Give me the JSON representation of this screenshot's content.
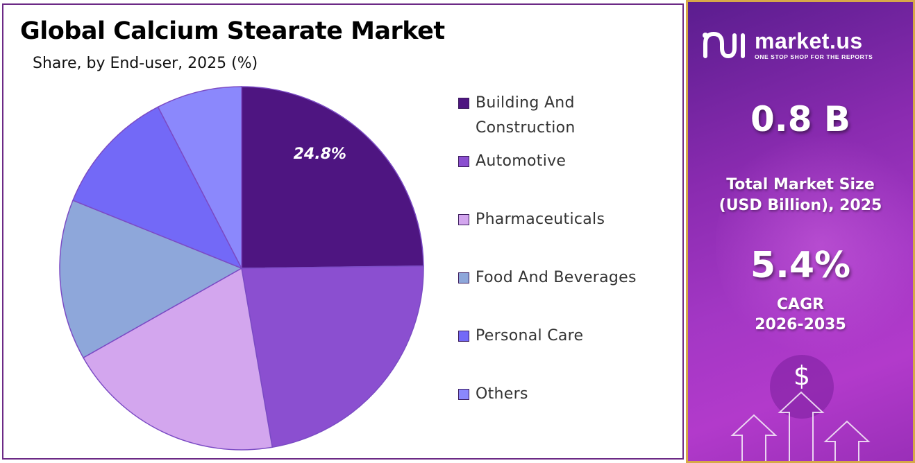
{
  "title": "Global Calcium Stearate Market",
  "subtitle": "Share, by End-user, 2025 (%)",
  "chart_data": {
    "type": "pie",
    "title": "Global Calcium Stearate Market",
    "subtitle": "Share, by End-user, 2025 (%)",
    "legend_position": "right",
    "series": [
      {
        "name": "Building And Construction",
        "value": 24.8,
        "color": "#4e1581",
        "label": "24.8%"
      },
      {
        "name": "Automotive",
        "value": 22.5,
        "color": "#8b4fd0",
        "label": ""
      },
      {
        "name": "Pharmaceuticals",
        "value": 19.5,
        "color": "#d3a6ee",
        "label": ""
      },
      {
        "name": "Food And Beverages",
        "value": 14.3,
        "color": "#8ea7da",
        "label": ""
      },
      {
        "name": "Personal Care",
        "value": 11.3,
        "color": "#7369f7",
        "label": ""
      },
      {
        "name": "Others",
        "value": 7.6,
        "color": "#8b88fc",
        "label": ""
      }
    ]
  },
  "legend": {
    "items": [
      {
        "lines": [
          "Building And",
          "Construction"
        ],
        "color": "#4e1581"
      },
      {
        "lines": [
          "Automotive"
        ],
        "color": "#8b4fd0"
      },
      {
        "lines": [
          "Pharmaceuticals"
        ],
        "color": "#d3a6ee"
      },
      {
        "lines": [
          "Food And Beverages"
        ],
        "color": "#8ea7da"
      },
      {
        "lines": [
          "Personal Care"
        ],
        "color": "#7369f7"
      },
      {
        "lines": [
          "Others"
        ],
        "color": "#8b88fc"
      }
    ]
  },
  "side_panel": {
    "logo_name": "market.us",
    "logo_tagline": "ONE STOP SHOP FOR THE REPORTS",
    "market_size_value": "0.8 B",
    "market_size_label_1": "Total Market Size",
    "market_size_label_2": "(USD Billion), 2025",
    "cagr_value": "5.4%",
    "cagr_label_1": "CAGR",
    "cagr_label_2": "2026-2035",
    "dollar_symbol": "$",
    "accent_color": "#d7a848"
  }
}
